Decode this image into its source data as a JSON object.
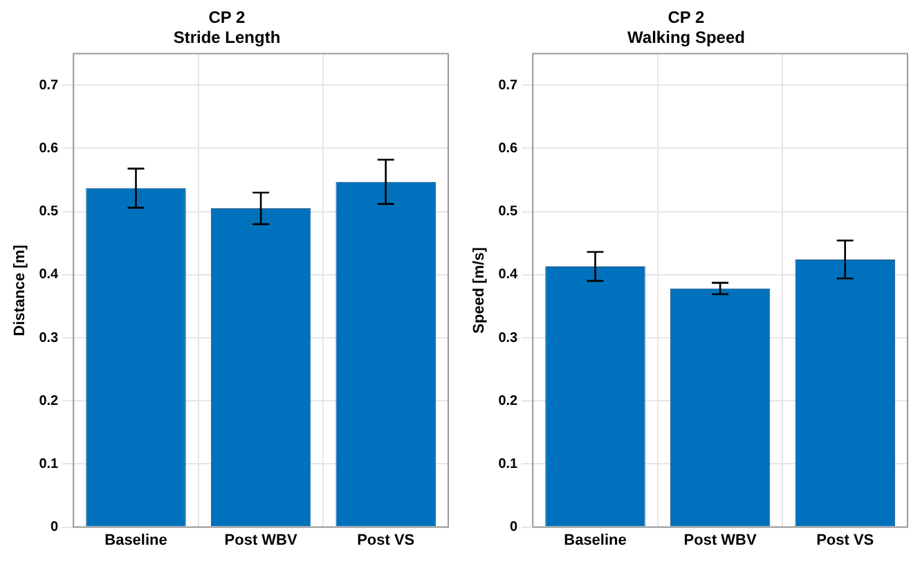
{
  "chart_data": [
    {
      "type": "bar",
      "title": "CP 2\nStride Length",
      "ylabel": "Distance [m]",
      "categories": [
        "Baseline",
        "Post WBV",
        "Post VS"
      ],
      "values": [
        0.537,
        0.505,
        0.547
      ],
      "errors": [
        0.031,
        0.025,
        0.035
      ],
      "color": "#0072bd",
      "ylim": [
        0,
        0.75
      ],
      "yticks": [
        0,
        0.1,
        0.2,
        0.3,
        0.4,
        0.5,
        0.6,
        0.7
      ],
      "grid": true
    },
    {
      "type": "bar",
      "title": "CP 2\nWalking Speed",
      "ylabel": "Speed [m/s]",
      "categories": [
        "Baseline",
        "Post WBV",
        "Post VS"
      ],
      "values": [
        0.413,
        0.378,
        0.424
      ],
      "errors": [
        0.023,
        0.009,
        0.03
      ],
      "color": "#0072bd",
      "ylim": [
        0,
        0.75
      ],
      "yticks": [
        0,
        0.1,
        0.2,
        0.3,
        0.4,
        0.5,
        0.6,
        0.7
      ],
      "grid": true
    }
  ]
}
